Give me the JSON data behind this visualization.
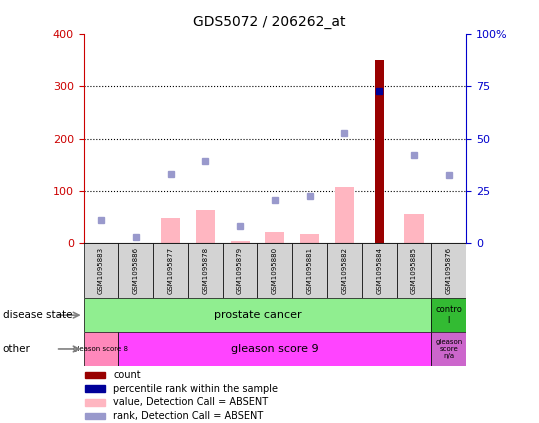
{
  "title": "GDS5072 / 206262_at",
  "samples": [
    "GSM1095883",
    "GSM1095886",
    "GSM1095877",
    "GSM1095878",
    "GSM1095879",
    "GSM1095880",
    "GSM1095881",
    "GSM1095882",
    "GSM1095884",
    "GSM1095885",
    "GSM1095876"
  ],
  "count_values": [
    0,
    0,
    0,
    0,
    0,
    0,
    0,
    0,
    350,
    0,
    0
  ],
  "percentile_rank": [
    null,
    null,
    null,
    null,
    null,
    null,
    null,
    null,
    290,
    null,
    null
  ],
  "value_absent": [
    null,
    null,
    48,
    63,
    5,
    22,
    18,
    108,
    null,
    55,
    null
  ],
  "rank_absent": [
    45,
    12,
    133,
    158,
    33,
    83,
    90,
    210,
    null,
    168,
    130
  ],
  "disease_state_n_prostate": 10,
  "disease_state_n_control": 1,
  "other_n_gleason8": 1,
  "other_n_gleason9": 9,
  "other_n_na": 1,
  "ylim_left": [
    0,
    400
  ],
  "ylim_right": [
    0,
    100
  ],
  "yticks_left": [
    0,
    100,
    200,
    300,
    400
  ],
  "yticks_right": [
    0,
    25,
    50,
    75,
    100
  ],
  "left_axis_color": "#CC0000",
  "right_axis_color": "#0000CC",
  "bar_color_count": "#990000",
  "bar_color_value": "#FFB6C1",
  "dot_color_percentile": "#000099",
  "dot_color_rank": "#9999CC",
  "grid_color": "black",
  "bg_color": "white",
  "disease_color_prostate": "#90EE90",
  "disease_color_control": "#33BB33",
  "other_color_g8": "#FF88BB",
  "other_color_g9": "#FF44FF",
  "other_color_na": "#CC66CC"
}
